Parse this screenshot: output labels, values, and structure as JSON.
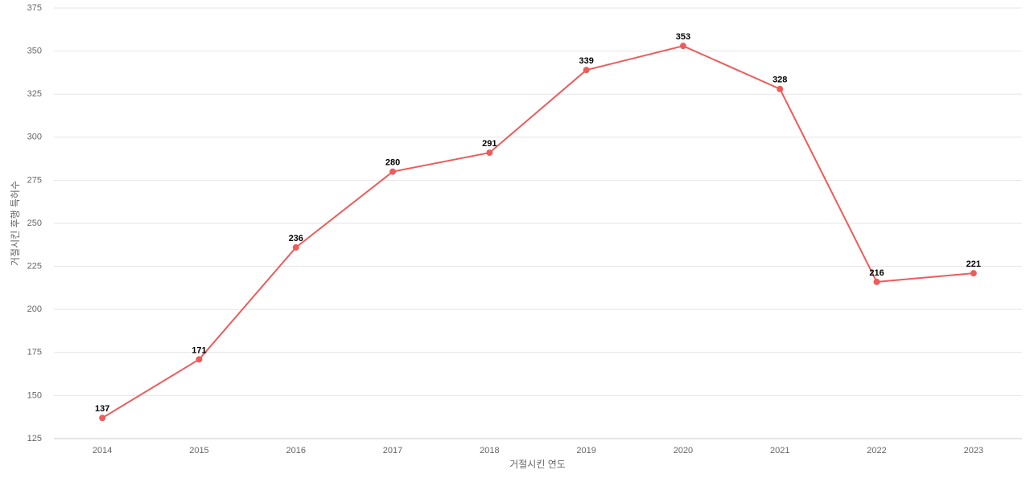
{
  "chart_data": {
    "type": "line",
    "x_label": "거절시킨 연도",
    "y_label": "거절시킨 후행 특허수",
    "categories": [
      "2014",
      "2015",
      "2016",
      "2017",
      "2018",
      "2019",
      "2020",
      "2021",
      "2022",
      "2023"
    ],
    "series": [
      {
        "color": "#ef5b5b",
        "values": [
          137,
          171,
          236,
          280,
          291,
          339,
          353,
          328,
          216,
          221
        ]
      }
    ],
    "ylim": [
      125,
      375
    ],
    "yticks": [
      125,
      150,
      175,
      200,
      225,
      250,
      275,
      300,
      325,
      350,
      375
    ],
    "grid": true
  }
}
